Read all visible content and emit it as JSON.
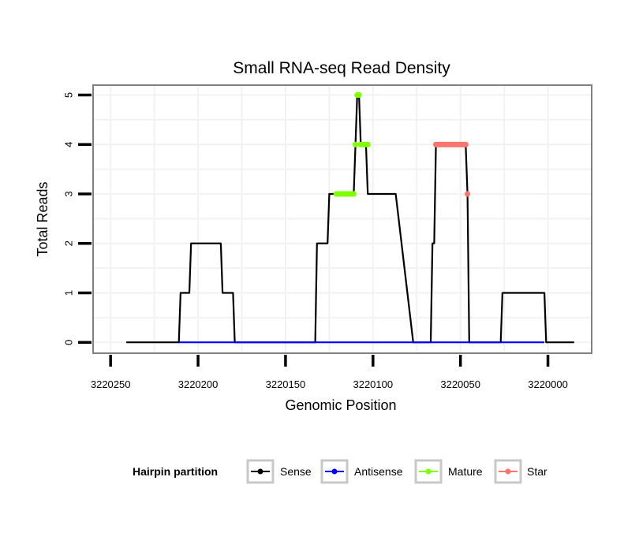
{
  "chart_data": {
    "type": "line",
    "title": "Small RNA-seq Read Density",
    "xlabel": "Genomic Position",
    "ylabel": "Total Reads",
    "xlim": [
      3220260,
      3219975
    ],
    "ylim": [
      -0.22,
      5.2
    ],
    "xticks": [
      3220250,
      3220200,
      3220150,
      3220100,
      3220050,
      3220000
    ],
    "xtick_labels": [
      "3220250",
      "3220200",
      "3220150",
      "3220100",
      "3220050",
      "3220000"
    ],
    "yticks": [
      0,
      1,
      2,
      3,
      4,
      5
    ],
    "ytick_labels": [
      "0",
      "1",
      "2",
      "3",
      "4",
      "5"
    ],
    "grid": true,
    "legend": {
      "title": "Hairpin partition",
      "position": "bottom",
      "entries": [
        "Sense",
        "Antisense",
        "Mature",
        "Star"
      ]
    },
    "series": [
      {
        "name": "Sense",
        "color": "#000000",
        "style": "line",
        "x": [
          3220241,
          3220211,
          3220210,
          3220205,
          3220204,
          3220187,
          3220186,
          3220180,
          3220179,
          3220133,
          3220132,
          3220126,
          3220125,
          3220121,
          3220111,
          3220110,
          3220109,
          3220108,
          3220107,
          3220104,
          3220103,
          3220090,
          3220087,
          3220077,
          3220067,
          3220066,
          3220065,
          3220064,
          3220047,
          3220046,
          3220045,
          3220027,
          3220026,
          3220002,
          3220001,
          3219985
        ],
        "y": [
          0,
          0,
          1,
          1,
          2,
          2,
          1,
          1,
          0,
          0,
          2,
          2,
          3,
          3,
          3,
          4,
          5,
          5,
          4,
          4,
          3,
          3,
          3,
          0,
          0,
          2,
          2,
          4,
          4,
          3,
          0,
          0,
          1,
          1,
          0,
          0
        ]
      },
      {
        "name": "Antisense",
        "color": "#0000ff",
        "style": "line",
        "x": [
          3220211,
          3220002
        ],
        "y": [
          0,
          0
        ]
      },
      {
        "name": "Mature",
        "color": "#7fff00",
        "style": "points",
        "x": [
          3220121,
          3220120,
          3220119,
          3220118,
          3220117,
          3220116,
          3220115,
          3220114,
          3220113,
          3220112,
          3220111,
          3220110,
          3220109,
          3220108,
          3220107,
          3220106,
          3220105,
          3220104,
          3220103
        ],
        "y": [
          3,
          3,
          3,
          3,
          3,
          3,
          3,
          3,
          3,
          3,
          3,
          4,
          5,
          5,
          4,
          4,
          4,
          4,
          4
        ]
      },
      {
        "name": "Star",
        "color": "#f8766d",
        "style": "points",
        "x": [
          3220064,
          3220063,
          3220062,
          3220061,
          3220060,
          3220059,
          3220058,
          3220057,
          3220056,
          3220055,
          3220054,
          3220053,
          3220052,
          3220051,
          3220050,
          3220049,
          3220048,
          3220047,
          3220046
        ],
        "y": [
          4,
          4,
          4,
          4,
          4,
          4,
          4,
          4,
          4,
          4,
          4,
          4,
          4,
          4,
          4,
          4,
          4,
          4,
          3
        ]
      }
    ]
  }
}
